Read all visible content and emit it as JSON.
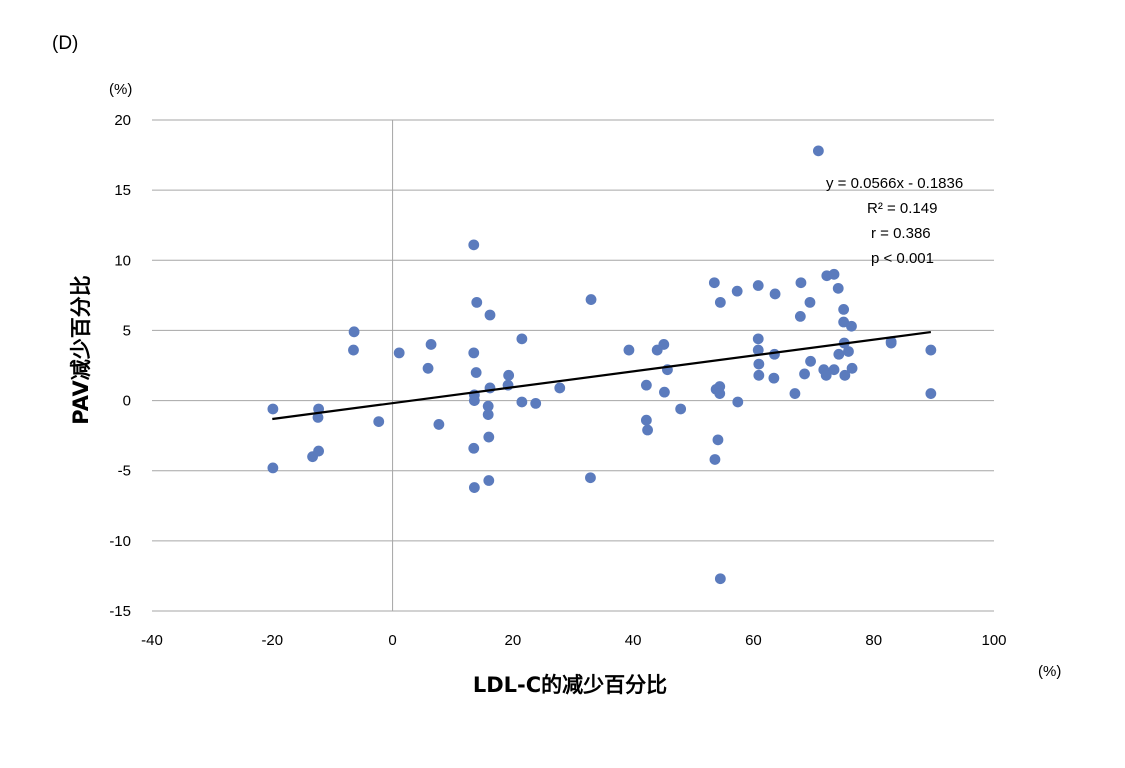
{
  "panel_label": "(D)",
  "colors": {
    "points": "#5b7bbd",
    "trendline": "#000000",
    "grid": "#a6a6a6"
  },
  "chart_data": {
    "type": "scatter",
    "xlabel": "LDL-C的减少百分比",
    "ylabel": "PAV减少百分比",
    "x_unit": "(%)",
    "y_unit": "(%)",
    "xlim": [
      -40,
      100
    ],
    "ylim": [
      -15,
      20
    ],
    "x_ticks": [
      -40,
      -20,
      0,
      20,
      40,
      60,
      80,
      100
    ],
    "y_ticks": [
      -15,
      -10,
      -5,
      0,
      5,
      10,
      15,
      20
    ],
    "grid": "horizontal",
    "trendline": {
      "slope": 0.0566,
      "intercept": -0.1836,
      "x_range": [
        -20,
        89.5
      ]
    },
    "annotations": [
      "y = 0.0566x - 0.1836",
      "R² = 0.149",
      "r = 0.386",
      "p < 0.001"
    ],
    "points": [
      [
        -19.9,
        -0.6
      ],
      [
        -19.9,
        -4.8
      ],
      [
        -13.3,
        -4.0
      ],
      [
        -12.3,
        -3.6
      ],
      [
        -12.4,
        -1.2
      ],
      [
        -12.3,
        -0.6
      ],
      [
        -6.4,
        4.9
      ],
      [
        -6.5,
        3.6
      ],
      [
        -2.3,
        -1.5
      ],
      [
        1.1,
        3.4
      ],
      [
        5.9,
        2.3
      ],
      [
        6.4,
        4.0
      ],
      [
        7.7,
        -1.7
      ],
      [
        13.5,
        11.1
      ],
      [
        14.0,
        7.0
      ],
      [
        13.5,
        3.4
      ],
      [
        13.9,
        2.0
      ],
      [
        13.6,
        0.4
      ],
      [
        13.6,
        0.0
      ],
      [
        13.5,
        -3.4
      ],
      [
        13.6,
        -6.2
      ],
      [
        16.2,
        6.1
      ],
      [
        16.2,
        0.9
      ],
      [
        15.9,
        -0.4
      ],
      [
        15.9,
        -1.0
      ],
      [
        16.0,
        -2.6
      ],
      [
        16.0,
        -5.7
      ],
      [
        19.3,
        1.8
      ],
      [
        19.2,
        1.1
      ],
      [
        21.5,
        4.4
      ],
      [
        21.5,
        -0.1
      ],
      [
        23.8,
        -0.2
      ],
      [
        27.8,
        0.9
      ],
      [
        33.0,
        7.2
      ],
      [
        32.9,
        -5.5
      ],
      [
        39.3,
        3.6
      ],
      [
        42.2,
        1.1
      ],
      [
        42.2,
        -1.4
      ],
      [
        42.4,
        -2.1
      ],
      [
        44.0,
        3.6
      ],
      [
        45.1,
        4.0
      ],
      [
        45.7,
        2.2
      ],
      [
        45.2,
        0.6
      ],
      [
        47.9,
        -0.6
      ],
      [
        53.5,
        8.4
      ],
      [
        54.5,
        7.0
      ],
      [
        53.8,
        0.8
      ],
      [
        54.4,
        1.0
      ],
      [
        54.4,
        0.5
      ],
      [
        54.1,
        -2.8
      ],
      [
        53.6,
        -4.2
      ],
      [
        54.5,
        -12.7
      ],
      [
        57.3,
        7.8
      ],
      [
        57.4,
        -0.1
      ],
      [
        60.8,
        8.2
      ],
      [
        60.8,
        4.4
      ],
      [
        60.8,
        3.6
      ],
      [
        60.9,
        2.6
      ],
      [
        60.9,
        1.8
      ],
      [
        63.6,
        7.6
      ],
      [
        63.5,
        3.3
      ],
      [
        63.4,
        1.6
      ],
      [
        66.9,
        0.5
      ],
      [
        67.9,
        8.4
      ],
      [
        67.8,
        6.0
      ],
      [
        69.4,
        7.0
      ],
      [
        68.5,
        1.9
      ],
      [
        69.5,
        2.8
      ],
      [
        70.8,
        17.8
      ],
      [
        72.2,
        8.9
      ],
      [
        73.4,
        9.0
      ],
      [
        74.1,
        8.0
      ],
      [
        75.0,
        6.5
      ],
      [
        75.0,
        5.6
      ],
      [
        75.1,
        4.1
      ],
      [
        76.3,
        5.3
      ],
      [
        75.8,
        3.5
      ],
      [
        74.2,
        3.3
      ],
      [
        71.7,
        2.2
      ],
      [
        72.1,
        1.8
      ],
      [
        73.4,
        2.2
      ],
      [
        75.2,
        1.8
      ],
      [
        76.4,
        2.3
      ],
      [
        82.9,
        4.1
      ],
      [
        82.9,
        4.2
      ],
      [
        89.5,
        3.6
      ],
      [
        89.5,
        0.5
      ]
    ]
  }
}
